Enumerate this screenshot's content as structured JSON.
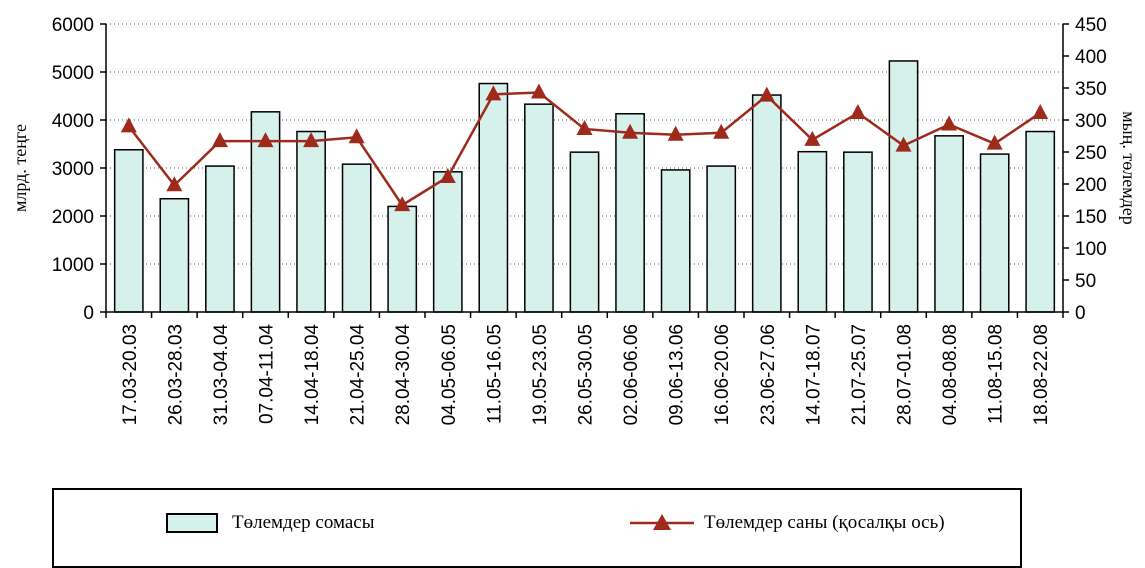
{
  "chart_data": {
    "type": "bar+line",
    "categories": [
      "17.03-20.03",
      "26.03-28.03",
      "31.03-04.04",
      "07.04-11.04",
      "14.04-18.04",
      "21.04-25.04",
      "28.04-30.04",
      "04.05-06.05",
      "11.05-16.05",
      "19.05-23.05",
      "26.05-30.05",
      "02.06-06.06",
      "09.06-13.06",
      "16.06-20.06",
      "23.06-27.06",
      "14.07-18.07",
      "21.07-25.07",
      "28.07-01.08",
      "04.08-08.08",
      "11.08-15.08",
      "18.08-22.08"
    ],
    "series": [
      {
        "name": "Төлемдер сомасы",
        "type": "bar",
        "axis": "left",
        "values": [
          3380,
          2360,
          3040,
          4170,
          3760,
          3080,
          2200,
          2920,
          4760,
          4330,
          3330,
          4130,
          2960,
          3040,
          4520,
          3340,
          3330,
          5230,
          3670,
          3290,
          3760
        ]
      },
      {
        "name": "Төлемдер саны (қосалқы ось)",
        "type": "line",
        "axis": "right",
        "values": [
          290,
          198,
          267,
          267,
          267,
          273,
          167,
          211,
          340,
          343,
          286,
          280,
          277,
          280,
          338,
          269,
          311,
          260,
          293,
          263,
          311
        ]
      }
    ],
    "ylabel": "млрд. теңге",
    "y2label": "мың. төлемдер",
    "ylim": [
      0,
      6000
    ],
    "y2lim": [
      0,
      450
    ],
    "yticks": [
      0,
      1000,
      2000,
      3000,
      4000,
      5000,
      6000
    ],
    "y2ticks": [
      0,
      50,
      100,
      150,
      200,
      250,
      300,
      350,
      400,
      450
    ],
    "grid": "horizontal dotted",
    "legend_position": "bottom",
    "colors": {
      "bar_fill": "#d6f0ec",
      "bar_stroke": "#000000",
      "line": "#9e2a1c",
      "marker": "#9e2a1c"
    }
  },
  "legend": {
    "bar_label": "Төлемдер сомасы",
    "line_label": "Төлемдер саны (қосалқы ось)"
  }
}
